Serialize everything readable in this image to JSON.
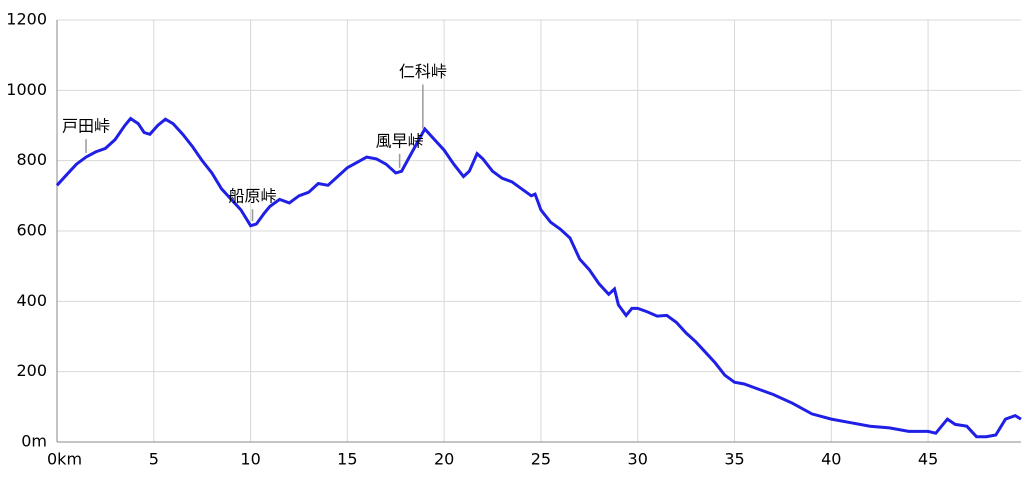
{
  "chart_data": {
    "type": "line",
    "color": "#1f1fe6",
    "grid": true,
    "xlim": [
      0,
      49.8
    ],
    "ylim": [
      0,
      1200
    ],
    "xticks": [
      {
        "value": 0,
        "label": "0km"
      },
      5,
      10,
      15,
      20,
      25,
      30,
      35,
      40,
      45
    ],
    "yticks": [
      {
        "value": 0,
        "label": "0m"
      },
      200,
      400,
      600,
      800,
      1000,
      1200
    ],
    "x": [
      0,
      0.5,
      1,
      1.5,
      2,
      2.5,
      3,
      3.5,
      3.8,
      4.2,
      4.5,
      4.8,
      5.2,
      5.6,
      6,
      6.5,
      7,
      7.5,
      8,
      8.5,
      9,
      9.5,
      10,
      10.3,
      10.7,
      11,
      11.5,
      12,
      12.5,
      13,
      13.5,
      14,
      14.5,
      15,
      15.5,
      16,
      16.5,
      17,
      17.5,
      17.8,
      18.2,
      18.6,
      19,
      19.5,
      20,
      20.5,
      21,
      21.3,
      21.7,
      22,
      22.5,
      23,
      23.5,
      24,
      24.5,
      24.7,
      25,
      25.5,
      26,
      26.5,
      27,
      27.5,
      28,
      28.5,
      28.8,
      29,
      29.4,
      29.7,
      30,
      30.5,
      31,
      31.5,
      32,
      32.5,
      33,
      33.5,
      34,
      34.5,
      35,
      35.5,
      36,
      37,
      38,
      39,
      40,
      41,
      42,
      43,
      44,
      45,
      45.4,
      46,
      46.4,
      47,
      47.5,
      48,
      48.5,
      49,
      49.5,
      49.8
    ],
    "values": [
      730,
      760,
      790,
      810,
      825,
      835,
      860,
      900,
      920,
      905,
      880,
      875,
      900,
      918,
      905,
      875,
      840,
      800,
      765,
      720,
      690,
      660,
      615,
      620,
      650,
      670,
      690,
      680,
      700,
      710,
      735,
      730,
      755,
      780,
      795,
      810,
      805,
      790,
      765,
      770,
      810,
      850,
      890,
      860,
      830,
      790,
      755,
      770,
      820,
      805,
      770,
      750,
      740,
      720,
      700,
      705,
      660,
      625,
      605,
      580,
      520,
      490,
      450,
      420,
      435,
      390,
      360,
      380,
      380,
      370,
      358,
      360,
      340,
      310,
      285,
      255,
      225,
      190,
      170,
      165,
      155,
      135,
      110,
      80,
      65,
      55,
      45,
      40,
      30,
      30,
      25,
      65,
      50,
      45,
      15,
      15,
      20,
      65,
      75,
      65
    ],
    "annotations": [
      {
        "text": "戸田峠",
        "x": 1.5
      },
      {
        "text": "船原峠",
        "x": 10.1
      },
      {
        "text": "風早峠",
        "x": 17.7
      },
      {
        "text": "仁科峠",
        "x": 18.9
      }
    ]
  }
}
